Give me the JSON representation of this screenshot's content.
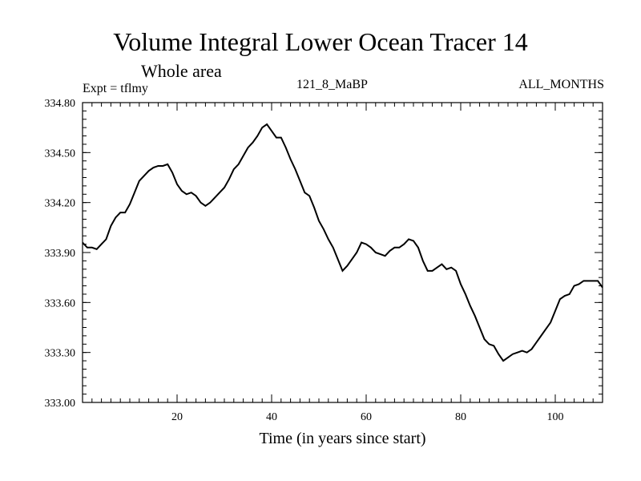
{
  "header": {
    "title": "Volume Integral Lower Ocean Tracer 14",
    "subtitle": "Whole area",
    "expt": "Expt = tflmy",
    "run": "121_8_MaBP",
    "months": "ALL_MONTHS"
  },
  "chart_data": {
    "type": "line",
    "title": "Volume Integral Lower Ocean Tracer 14",
    "xlabel": "Time (in years since start)",
    "ylabel": "",
    "xlim": [
      0,
      110
    ],
    "ylim": [
      333.0,
      334.8
    ],
    "xticks": [
      20,
      40,
      60,
      80,
      100
    ],
    "xtick_labels": [
      "20",
      "40",
      "60",
      "80",
      "100"
    ],
    "yticks": [
      333.0,
      333.3,
      333.6,
      333.9,
      334.2,
      334.5,
      334.8
    ],
    "ytick_labels": [
      "333.00",
      "333.30",
      "333.60",
      "333.90",
      "334.20",
      "334.50",
      "334.80"
    ],
    "x_minor_step": 2,
    "y_minor_step": 0.05,
    "series": [
      {
        "name": "Tracer 14",
        "color": "#000000",
        "x": [
          0,
          1,
          2,
          3,
          4,
          5,
          6,
          7,
          8,
          9,
          10,
          11,
          12,
          13,
          14,
          15,
          16,
          17,
          18,
          19,
          20,
          21,
          22,
          23,
          24,
          25,
          26,
          27,
          28,
          29,
          30,
          31,
          32,
          33,
          34,
          35,
          36,
          37,
          38,
          39,
          40,
          41,
          42,
          43,
          44,
          45,
          46,
          47,
          48,
          49,
          50,
          51,
          52,
          53,
          54,
          55,
          56,
          57,
          58,
          59,
          60,
          61,
          62,
          63,
          64,
          65,
          66,
          67,
          68,
          69,
          70,
          71,
          72,
          73,
          74,
          75,
          76,
          77,
          78,
          79,
          80,
          81,
          82,
          83,
          84,
          85,
          86,
          87,
          88,
          89,
          90,
          91,
          92,
          93,
          94,
          95,
          96,
          97,
          98,
          99,
          100,
          101,
          102,
          103,
          104,
          105,
          106,
          107,
          108,
          109,
          110
        ],
        "y": [
          333.96,
          333.93,
          333.93,
          333.92,
          333.95,
          333.98,
          334.06,
          334.11,
          334.14,
          334.14,
          334.19,
          334.26,
          334.33,
          334.36,
          334.39,
          334.41,
          334.42,
          334.42,
          334.43,
          334.38,
          334.31,
          334.27,
          334.25,
          334.26,
          334.24,
          334.2,
          334.18,
          334.2,
          334.23,
          334.26,
          334.29,
          334.34,
          334.4,
          334.43,
          334.48,
          334.53,
          334.56,
          334.6,
          334.65,
          334.67,
          334.63,
          334.59,
          334.59,
          334.53,
          334.46,
          334.4,
          334.33,
          334.26,
          334.24,
          334.17,
          334.09,
          334.04,
          333.98,
          333.93,
          333.86,
          333.79,
          333.82,
          333.86,
          333.9,
          333.96,
          333.95,
          333.93,
          333.9,
          333.89,
          333.88,
          333.91,
          333.93,
          333.93,
          333.95,
          333.98,
          333.97,
          333.93,
          333.85,
          333.79,
          333.79,
          333.81,
          333.83,
          333.8,
          333.81,
          333.79,
          333.71,
          333.65,
          333.58,
          333.52,
          333.45,
          333.38,
          333.35,
          333.34,
          333.29,
          333.25,
          333.27,
          333.29,
          333.3,
          333.31,
          333.3,
          333.32,
          333.36,
          333.4,
          333.44,
          333.48,
          333.55,
          333.62,
          333.64,
          333.65,
          333.7,
          333.71,
          333.73,
          333.73,
          333.73,
          333.73,
          333.69
        ]
      }
    ]
  }
}
